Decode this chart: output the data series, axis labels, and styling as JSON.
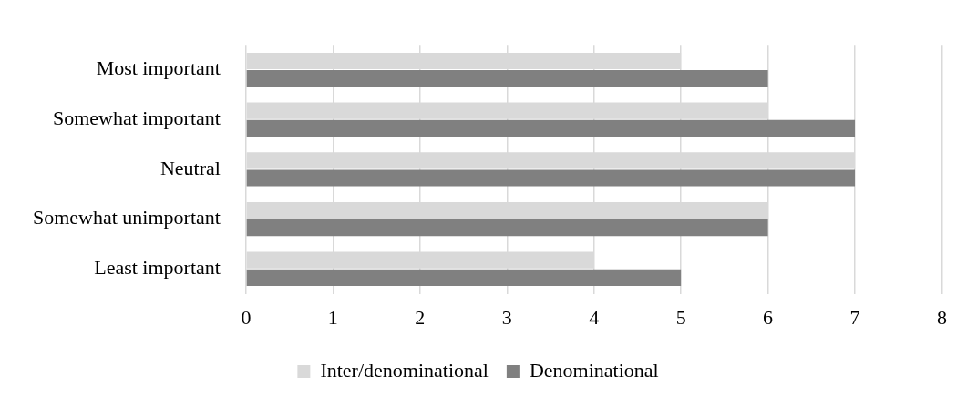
{
  "chart_data": {
    "type": "bar",
    "orientation": "horizontal",
    "categories": [
      "Most important",
      "Somewhat important",
      "Neutral",
      "Somewhat unimportant",
      "Least important"
    ],
    "series": [
      {
        "name": "Inter/denominational",
        "color": "#d9d9d9",
        "values": [
          5,
          6,
          7,
          6,
          4
        ]
      },
      {
        "name": "Denominational",
        "color": "#808080",
        "values": [
          6,
          7,
          7,
          6,
          5
        ]
      }
    ],
    "xlim": [
      0,
      8
    ],
    "xticks": [
      0,
      1,
      2,
      3,
      4,
      5,
      6,
      7,
      8
    ],
    "grid": "x",
    "legend": "bottom"
  }
}
